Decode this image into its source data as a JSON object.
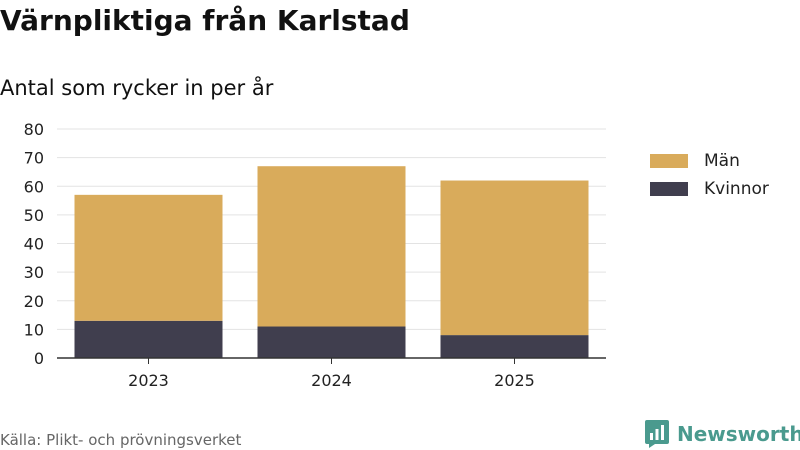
{
  "header": {
    "title": "Värnpliktiga från Karlstad",
    "subtitle": "Antal som rycker in per år"
  },
  "footer": {
    "source": "Källa: Plikt- och prövningsverket",
    "brand": "Newsworthy",
    "brand_color": "#4a9a8e",
    "brand_icon": "bar-chart-speech-bubble-icon"
  },
  "chart_data": {
    "type": "bar",
    "stacked": true,
    "title": "Värnpliktiga från Karlstad",
    "subtitle": "Antal som rycker in per år",
    "categories": [
      "2023",
      "2024",
      "2025"
    ],
    "series": [
      {
        "name": "Kvinnor",
        "values": [
          13,
          11,
          8
        ],
        "color": "#403e4e"
      },
      {
        "name": "Män",
        "values": [
          44,
          56,
          54
        ],
        "color": "#d9ab5b"
      }
    ],
    "ylim": [
      0,
      80
    ],
    "yticks": [
      0,
      10,
      20,
      30,
      40,
      50,
      60,
      70,
      80
    ],
    "grid": true,
    "legend": "right",
    "legend_order": [
      "Män",
      "Kvinnor"
    ]
  }
}
